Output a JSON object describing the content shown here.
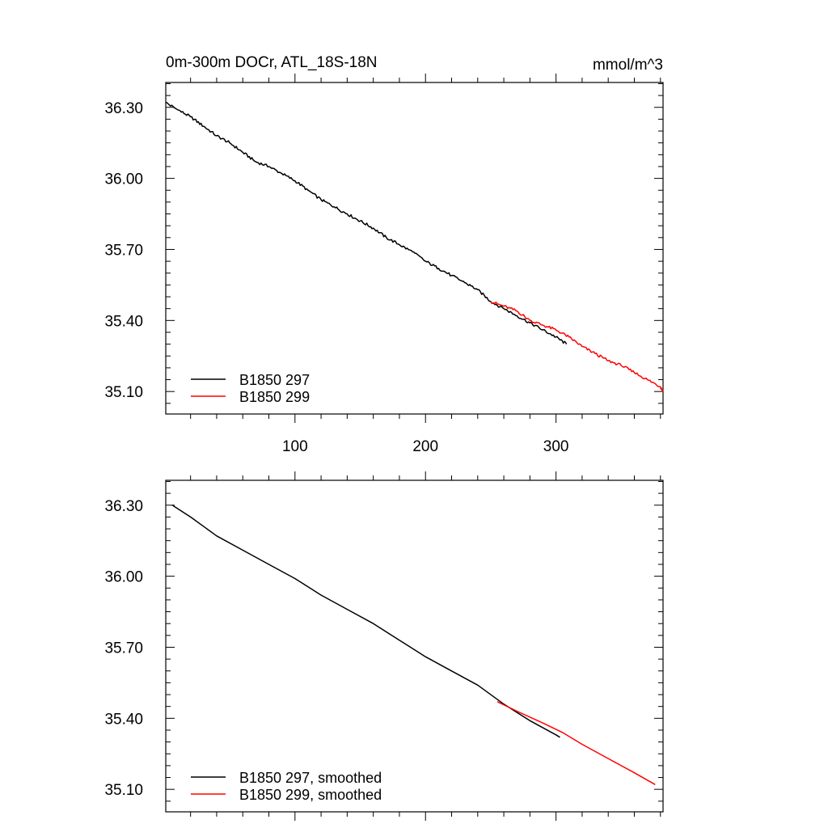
{
  "chart_data": [
    {
      "type": "line",
      "title": "0m-300m DOCr, ATL_18S-18N",
      "units": "mmol/m^3",
      "xlim": [
        1,
        382
      ],
      "ylim": [
        35.005,
        36.405
      ],
      "x_ticks": [
        100,
        200,
        300
      ],
      "x_tick_labels": [
        "100",
        "200",
        "300"
      ],
      "y_ticks": [
        35.1,
        35.4,
        35.7,
        36.0,
        36.3
      ],
      "y_tick_labels": [
        "35.10",
        "35.40",
        "35.70",
        "36.00",
        "36.30"
      ],
      "legend_position": "bottom-left",
      "series": [
        {
          "name": "B1850 297",
          "color": "#000000",
          "x": [
            1,
            10,
            20,
            30,
            40,
            50,
            60,
            70,
            80,
            90,
            100,
            110,
            120,
            130,
            140,
            150,
            160,
            170,
            180,
            190,
            200,
            210,
            220,
            230,
            240,
            250,
            260,
            270,
            280,
            290,
            300,
            308
          ],
          "y": [
            36.32,
            36.29,
            36.26,
            36.22,
            36.18,
            36.15,
            36.11,
            36.07,
            36.05,
            36.02,
            35.99,
            35.95,
            35.91,
            35.88,
            35.85,
            35.82,
            35.79,
            35.75,
            35.72,
            35.69,
            35.65,
            35.62,
            35.59,
            35.56,
            35.53,
            35.48,
            35.45,
            35.42,
            35.39,
            35.36,
            35.33,
            35.3
          ]
        },
        {
          "name": "B1850 299",
          "color": "#ff0000",
          "x": [
            250,
            260,
            270,
            280,
            290,
            300,
            310,
            320,
            330,
            340,
            350,
            360,
            370,
            380,
            382
          ],
          "y": [
            35.48,
            35.46,
            35.44,
            35.4,
            35.38,
            35.36,
            35.33,
            35.29,
            35.26,
            35.23,
            35.21,
            35.18,
            35.15,
            35.12,
            35.1
          ]
        }
      ]
    },
    {
      "type": "line",
      "xlim": [
        1,
        382
      ],
      "ylim": [
        35.005,
        36.405
      ],
      "x_ticks": [
        100,
        200,
        300
      ],
      "y_ticks": [
        35.1,
        35.4,
        35.7,
        36.0,
        36.3
      ],
      "y_tick_labels": [
        "35.10",
        "35.40",
        "35.70",
        "36.00",
        "36.30"
      ],
      "legend_position": "bottom-left",
      "series": [
        {
          "name": "B1850 297, smoothed",
          "color": "#000000",
          "x": [
            6,
            20,
            40,
            60,
            80,
            100,
            120,
            140,
            160,
            180,
            200,
            220,
            240,
            260,
            280,
            300,
            303
          ],
          "y": [
            36.3,
            36.25,
            36.17,
            36.11,
            36.05,
            35.99,
            35.92,
            35.86,
            35.8,
            35.73,
            35.66,
            35.6,
            35.54,
            35.46,
            35.39,
            35.33,
            35.32
          ]
        },
        {
          "name": "B1850 299, smoothed",
          "color": "#ff0000",
          "x": [
            255,
            270,
            290,
            305,
            320,
            340,
            360,
            376
          ],
          "y": [
            35.47,
            35.43,
            35.38,
            35.34,
            35.29,
            35.23,
            35.17,
            35.12
          ]
        }
      ]
    }
  ]
}
